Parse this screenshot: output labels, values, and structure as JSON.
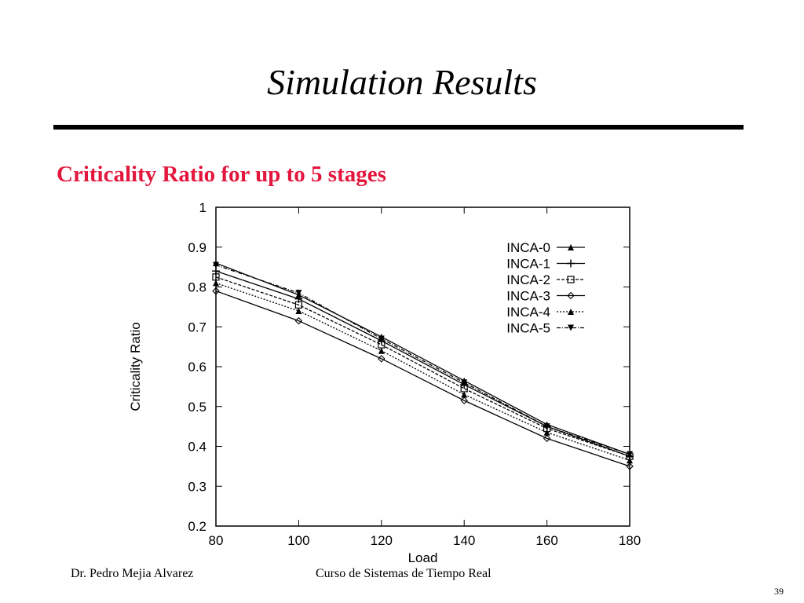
{
  "slide": {
    "title": "Simulation Results",
    "subtitle": "Criticality Ratio for up to 5 stages",
    "footer_left": "Dr. Pedro Mejia Alvarez",
    "footer_center": "Curso de Sistemas de Tiempo Real",
    "page_number": "39",
    "subtitle_color": "#e3173d"
  },
  "chart_data": {
    "type": "line",
    "title": "",
    "xlabel": "Load",
    "ylabel": "Criticality Ratio",
    "x": [
      80,
      100,
      120,
      140,
      160,
      180
    ],
    "xlim": [
      80,
      180
    ],
    "ylim": [
      0.2,
      1.0
    ],
    "xticks": [
      "80",
      "100",
      "120",
      "140",
      "160",
      "180"
    ],
    "yticks": [
      "0.2",
      "0.3",
      "0.4",
      "0.5",
      "0.6",
      "0.7",
      "0.8",
      "0.9",
      "1"
    ],
    "grid": false,
    "legend_position": "top-right",
    "series": [
      {
        "name": "INCA-0",
        "values": [
          0.86,
          0.78,
          0.675,
          0.565,
          0.455,
          0.38
        ],
        "dash": "",
        "marker": "triangle"
      },
      {
        "name": "INCA-1",
        "values": [
          0.84,
          0.77,
          0.665,
          0.555,
          0.45,
          0.375
        ],
        "dash": "",
        "marker": "plus"
      },
      {
        "name": "INCA-2",
        "values": [
          0.825,
          0.755,
          0.655,
          0.545,
          0.445,
          0.375
        ],
        "dash": "4,2",
        "marker": "square"
      },
      {
        "name": "INCA-3",
        "values": [
          0.79,
          0.715,
          0.62,
          0.515,
          0.42,
          0.35
        ],
        "dash": "",
        "marker": "diamond"
      },
      {
        "name": "INCA-4",
        "values": [
          0.81,
          0.74,
          0.64,
          0.53,
          0.435,
          0.365
        ],
        "dash": "2,2",
        "marker": "triangle"
      },
      {
        "name": "INCA-5",
        "values": [
          0.855,
          0.785,
          0.67,
          0.56,
          0.45,
          0.38
        ],
        "dash": "5,2,1,2",
        "marker": "tri-down"
      }
    ]
  }
}
